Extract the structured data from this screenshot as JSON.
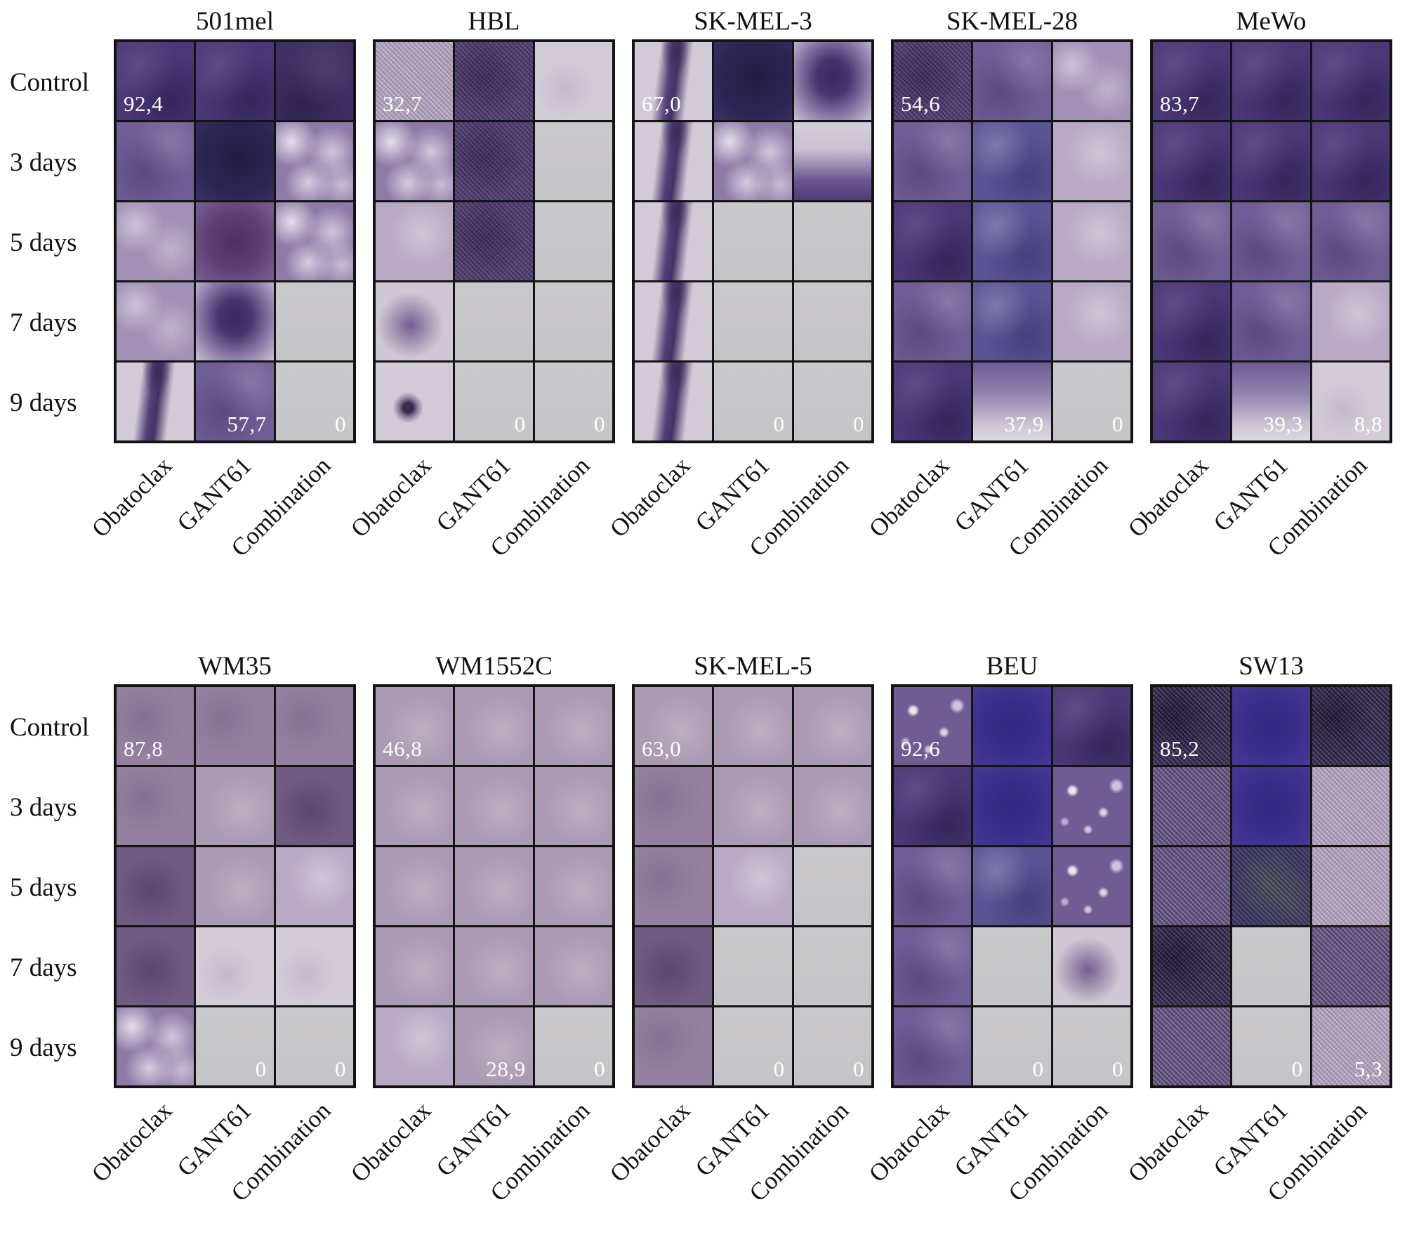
{
  "figure": {
    "row_labels": [
      "Control",
      "3 days",
      "5 days",
      "7 days",
      "9 days"
    ],
    "col_labels": [
      "Obatoclax",
      "GANT61",
      "Combination"
    ],
    "colors": {
      "background": "#ffffff",
      "grid_border": "#141414",
      "annotation_text": "#ffffff"
    },
    "rows": [
      {
        "panels": [
          {
            "title": "501mel",
            "cells": [
              "dp",
              "dp",
              "dp2",
              "mp",
              "navy",
              "mot",
              "lp",
              "dmag",
              "mot",
              "lp",
              "blob",
              "grey",
              "streak",
              "mp",
              "grey"
            ],
            "overlays": [
              {
                "cell": 0,
                "text": "92,4",
                "pos": "bl"
              },
              {
                "cell": 13,
                "text": "57,7",
                "pos": "br"
              },
              {
                "cell": 14,
                "text": "0",
                "pos": "br"
              }
            ]
          },
          {
            "title": "HBL",
            "cells": [
              "grainl",
              "dpg",
              "pale",
              "mot",
              "dpg",
              "grey",
              "lav",
              "dpg",
              "grey",
              "spot",
              "grey",
              "grey",
              "dot",
              "grey",
              "grey"
            ],
            "overlays": [
              {
                "cell": 0,
                "text": "32,7",
                "pos": "bl"
              },
              {
                "cell": 13,
                "text": "0",
                "pos": "br"
              },
              {
                "cell": 14,
                "text": "0",
                "pos": "br"
              }
            ]
          },
          {
            "title": "SK-MEL-3",
            "cells": [
              "streak",
              "navy",
              "blob",
              "streak",
              "mot",
              "fadeup",
              "streak",
              "grey",
              "grey",
              "streak",
              "grey",
              "grey",
              "streak",
              "grey",
              "grey"
            ],
            "overlays": [
              {
                "cell": 0,
                "text": "67,0",
                "pos": "bl"
              },
              {
                "cell": 13,
                "text": "0",
                "pos": "br"
              },
              {
                "cell": 14,
                "text": "0",
                "pos": "br"
              }
            ]
          },
          {
            "title": "SK-MEL-28",
            "cells": [
              "dpg",
              "mp",
              "lp",
              "mp",
              "blue",
              "lav",
              "dp",
              "blue",
              "lav",
              "mp",
              "blue",
              "lav",
              "dp",
              "fade",
              "grey"
            ],
            "overlays": [
              {
                "cell": 0,
                "text": "54,6",
                "pos": "bl"
              },
              {
                "cell": 13,
                "text": "37,9",
                "pos": "br"
              },
              {
                "cell": 14,
                "text": "0",
                "pos": "br"
              }
            ]
          },
          {
            "title": "MeWo",
            "cells": [
              "dp",
              "dp",
              "dp",
              "dp",
              "dp",
              "dp",
              "mp",
              "mp",
              "mp",
              "dp",
              "mp",
              "lav",
              "dp",
              "fade",
              "pale"
            ],
            "overlays": [
              {
                "cell": 0,
                "text": "83,7",
                "pos": "bl"
              },
              {
                "cell": 13,
                "text": "39,3",
                "pos": "br"
              },
              {
                "cell": 14,
                "text": "8,8",
                "pos": "br"
              }
            ]
          }
        ]
      },
      {
        "panels": [
          {
            "title": "WM35",
            "cells": [
              "mauve",
              "mauve",
              "mauve",
              "mauve",
              "mauvel",
              "mauved",
              "mauved",
              "mauvel",
              "lav",
              "mauved",
              "pale",
              "pale",
              "mot",
              "grey",
              "grey"
            ],
            "overlays": [
              {
                "cell": 0,
                "text": "87,8",
                "pos": "bl"
              },
              {
                "cell": 13,
                "text": "0",
                "pos": "br"
              },
              {
                "cell": 14,
                "text": "0",
                "pos": "br"
              }
            ]
          },
          {
            "title": "WM1552C",
            "cells": [
              "mauvel",
              "mauvel",
              "mauvel",
              "mauvel",
              "mauvel",
              "mauvel",
              "mauvel",
              "mauvel",
              "mauvel",
              "mauvel",
              "mauvel",
              "mauvel",
              "lav",
              "mauvel",
              "grey"
            ],
            "overlays": [
              {
                "cell": 0,
                "text": "46,8",
                "pos": "bl"
              },
              {
                "cell": 13,
                "text": "28,9",
                "pos": "br"
              },
              {
                "cell": 14,
                "text": "0",
                "pos": "br"
              }
            ]
          },
          {
            "title": "SK-MEL-5",
            "cells": [
              "mauvel",
              "mauvel",
              "mauvel",
              "mauve",
              "mauvel",
              "mauvel",
              "mauve",
              "lav",
              "grey",
              "mauved",
              "grey",
              "grey",
              "mauve",
              "grey",
              "grey"
            ],
            "overlays": [
              {
                "cell": 0,
                "text": "63,0",
                "pos": "bl"
              },
              {
                "cell": 13,
                "text": "0",
                "pos": "br"
              },
              {
                "cell": 14,
                "text": "0",
                "pos": "br"
              }
            ]
          },
          {
            "title": "BEU",
            "cells": [
              "mpspot",
              "violet",
              "dp",
              "dp",
              "violet",
              "mpspot",
              "mp",
              "blue",
              "mpspot",
              "mp",
              "grey",
              "spot",
              "mp",
              "grey",
              "grey"
            ],
            "overlays": [
              {
                "cell": 0,
                "text": "92,6",
                "pos": "bl"
              },
              {
                "cell": 13,
                "text": "0",
                "pos": "br"
              },
              {
                "cell": 14,
                "text": "0",
                "pos": "br"
              }
            ]
          },
          {
            "title": "SW13",
            "cells": [
              "graind",
              "violet",
              "graind",
              "grainm",
              "violet",
              "grainl",
              "grainm",
              "vgreen",
              "grainl",
              "graind",
              "grey",
              "grainm",
              "grainm",
              "grey",
              "grainl"
            ],
            "overlays": [
              {
                "cell": 0,
                "text": "85,2",
                "pos": "bl"
              },
              {
                "cell": 13,
                "text": "0",
                "pos": "br"
              },
              {
                "cell": 14,
                "text": "5,3",
                "pos": "br"
              }
            ]
          }
        ]
      }
    ]
  }
}
